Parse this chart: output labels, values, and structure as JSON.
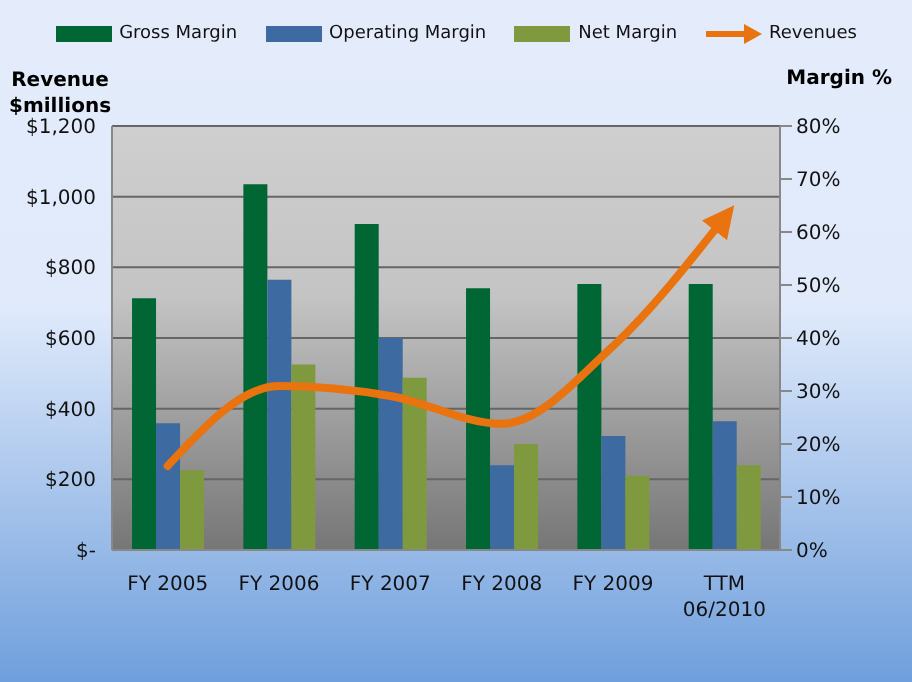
{
  "chart_data": {
    "type": "bar",
    "ylabel": "Revenue\n$millions",
    "y2label": "Margin %",
    "categories": [
      "FY 2005",
      "FY 2006",
      "FY 2007",
      "FY 2008",
      "FY 2009",
      "TTM\n06/2010"
    ],
    "series": [
      {
        "name": "Gross Margin",
        "color": "#006633",
        "axis": "y2",
        "values": [
          47.5,
          69,
          61.5,
          49.4,
          50.2,
          50.2
        ]
      },
      {
        "name": "Operating Margin",
        "color": "#3d6aa0",
        "axis": "y2",
        "values": [
          23.9,
          51,
          40,
          16,
          21.5,
          24.3
        ]
      },
      {
        "name": "Net Margin",
        "color": "#7f9a3e",
        "axis": "y2",
        "values": [
          15.1,
          35,
          32.5,
          20,
          14,
          16
        ]
      },
      {
        "name": "Revenues",
        "type": "line",
        "color": "#e8730f",
        "axis": "y",
        "values": [
          238,
          464,
          436,
          357,
          577,
          940
        ]
      }
    ],
    "ylim": [
      0,
      1200
    ],
    "yticks": [
      {
        "value": 0,
        "label": "$-"
      },
      {
        "value": 200,
        "label": "$200"
      },
      {
        "value": 400,
        "label": "$400"
      },
      {
        "value": 600,
        "label": "$600"
      },
      {
        "value": 800,
        "label": "$800"
      },
      {
        "value": 1000,
        "label": "$1,000"
      },
      {
        "value": 1200,
        "label": "$1,200"
      }
    ],
    "y2lim": [
      0,
      80
    ],
    "y2ticks": [
      {
        "value": 0,
        "label": "0%"
      },
      {
        "value": 10,
        "label": "10%"
      },
      {
        "value": 20,
        "label": "20%"
      },
      {
        "value": 30,
        "label": "30%"
      },
      {
        "value": 40,
        "label": "40%"
      },
      {
        "value": 50,
        "label": "50%"
      },
      {
        "value": 60,
        "label": "60%"
      },
      {
        "value": 70,
        "label": "70%"
      },
      {
        "value": 80,
        "label": "80%"
      }
    ],
    "grid": "y",
    "legend": "top",
    "marker": "none",
    "line_style": "solid"
  }
}
